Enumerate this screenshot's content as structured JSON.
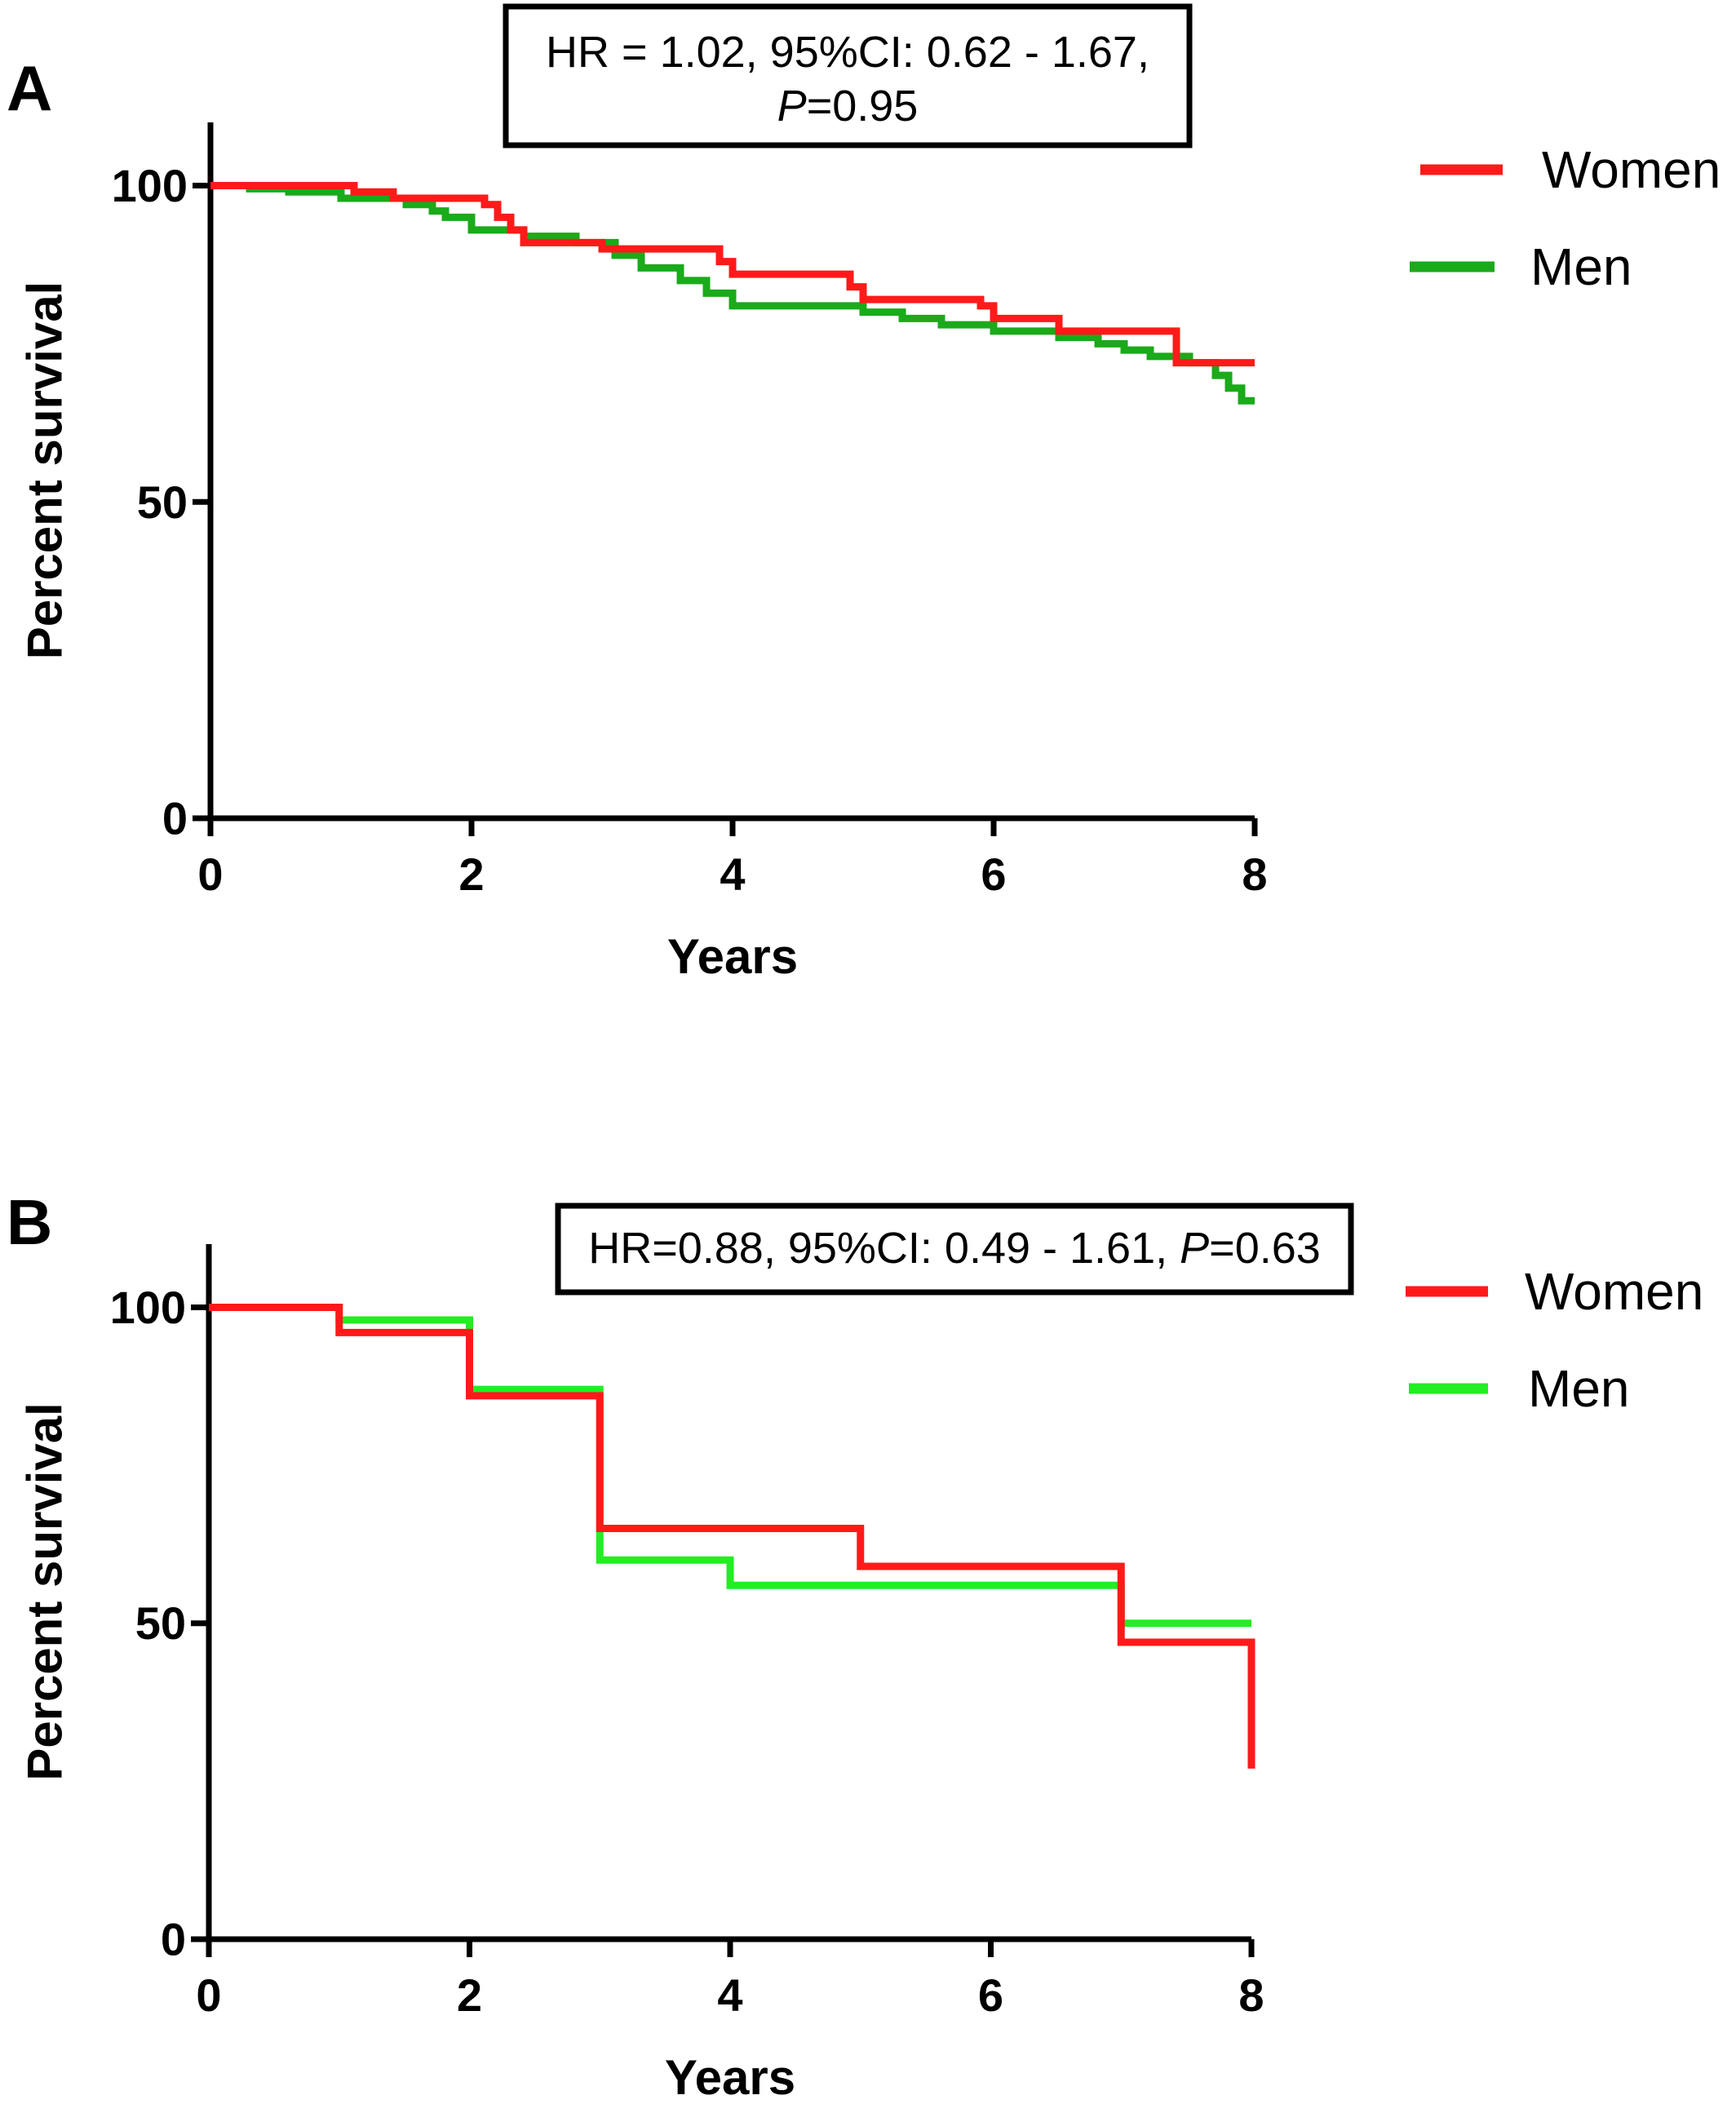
{
  "chart_data": [
    {
      "type": "line",
      "panel_label": "A",
      "annotation": {
        "line1": "HR = 1.02, 95%CI: 0.62 - 1.67,",
        "p_label": "P",
        "p_value": "=0.95"
      },
      "xlabel": "Years",
      "ylabel": "Percent survival",
      "xlim": [
        0,
        8
      ],
      "ylim": [
        0,
        110
      ],
      "xticks": [
        0,
        2,
        4,
        6,
        8
      ],
      "yticks": [
        0,
        50,
        100
      ],
      "legend_position": "right",
      "series": [
        {
          "name": "Women",
          "color": "#ff1a1a",
          "x": [
            0,
            1.1,
            1.4,
            2.1,
            2.2,
            2.3,
            2.4,
            3.0,
            3.9,
            4.0,
            4.9,
            5.0,
            5.9,
            6.0,
            6.5,
            7.4,
            8.0
          ],
          "y": [
            100,
            99,
            98,
            97,
            95,
            93,
            91,
            90,
            88,
            86,
            84,
            82,
            81,
            79,
            77,
            72,
            72
          ]
        },
        {
          "name": "Men",
          "color": "#1aaa1a",
          "x": [
            0,
            0.3,
            0.6,
            1.0,
            1.5,
            1.7,
            1.8,
            2.0,
            2.4,
            2.8,
            3.1,
            3.3,
            3.6,
            3.8,
            4.0,
            5.0,
            5.3,
            5.6,
            6.0,
            6.5,
            6.8,
            7.0,
            7.2,
            7.5,
            7.7,
            7.8,
            7.9,
            8.0
          ],
          "y": [
            100,
            99.5,
            99,
            98,
            97,
            96,
            95,
            93,
            92,
            91,
            89,
            87,
            85,
            83,
            81,
            80,
            79,
            78,
            77,
            76,
            75,
            74,
            73,
            72,
            70,
            68,
            66,
            66
          ]
        }
      ]
    },
    {
      "type": "line",
      "panel_label": "B",
      "annotation": {
        "line1": "HR=0.88, 95%CI: 0.49 - 1.61, ",
        "p_label": "P",
        "p_value": "=0.63"
      },
      "xlabel": "Years",
      "ylabel": "Percent survival",
      "xlim": [
        0,
        8
      ],
      "ylim": [
        0,
        110
      ],
      "xticks": [
        0,
        2,
        4,
        6,
        8
      ],
      "yticks": [
        0,
        50,
        100
      ],
      "legend_position": "right",
      "series": [
        {
          "name": "Women",
          "color": "#ff1a1a",
          "x": [
            0,
            1,
            2,
            3,
            5,
            7,
            8,
            8
          ],
          "y": [
            100,
            96,
            86,
            65,
            59,
            47,
            47,
            27
          ]
        },
        {
          "name": "Men",
          "color": "#22ee22",
          "x": [
            0,
            1,
            2,
            3,
            4,
            7,
            8
          ],
          "y": [
            100,
            98,
            87,
            60,
            56,
            50,
            50
          ]
        }
      ]
    }
  ]
}
